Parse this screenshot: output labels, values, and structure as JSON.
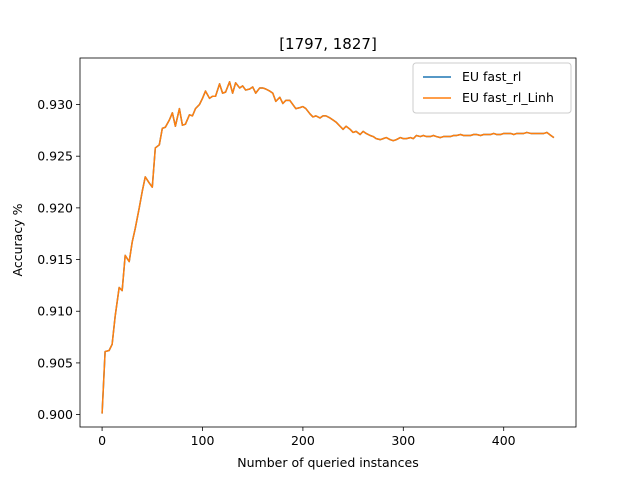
{
  "chart_data": {
    "type": "line",
    "title": "[1797, 1827]",
    "xlabel": "Number of queried instances",
    "ylabel": "Accuracy %",
    "xlim": [
      -22,
      472
    ],
    "ylim": [
      0.8988,
      0.9345
    ],
    "x_ticks": [
      0,
      100,
      200,
      300,
      400
    ],
    "y_ticks": [
      0.9,
      0.905,
      0.91,
      0.915,
      0.92,
      0.925,
      0.93
    ],
    "x_tick_labels": [
      "0",
      "100",
      "200",
      "300",
      "400"
    ],
    "y_tick_labels": [
      "0.900",
      "0.905",
      "0.910",
      "0.915",
      "0.920",
      "0.925",
      "0.930"
    ],
    "grid": false,
    "legend_position": "upper right",
    "x": [
      0,
      3,
      7,
      10,
      13,
      17,
      20,
      23,
      27,
      30,
      33,
      37,
      40,
      43,
      47,
      50,
      53,
      57,
      60,
      63,
      67,
      70,
      73,
      77,
      80,
      83,
      87,
      90,
      93,
      97,
      100,
      103,
      107,
      110,
      113,
      117,
      120,
      123,
      127,
      130,
      133,
      137,
      140,
      143,
      147,
      150,
      153,
      157,
      160,
      163,
      167,
      170,
      173,
      177,
      180,
      183,
      187,
      190,
      193,
      197,
      200,
      203,
      207,
      210,
      213,
      217,
      220,
      223,
      227,
      230,
      233,
      237,
      240,
      243,
      247,
      250,
      253,
      257,
      260,
      263,
      267,
      270,
      273,
      277,
      280,
      283,
      287,
      290,
      293,
      297,
      300,
      303,
      307,
      310,
      313,
      317,
      320,
      323,
      327,
      330,
      333,
      337,
      340,
      343,
      347,
      350,
      353,
      357,
      360,
      363,
      367,
      370,
      373,
      377,
      380,
      383,
      387,
      390,
      393,
      397,
      400,
      403,
      407,
      410,
      413,
      417,
      420,
      423,
      427,
      430,
      433,
      437,
      440,
      443,
      447,
      450
    ],
    "series": [
      {
        "name": "EU fast_rl",
        "color": "#1f77b4",
        "values": [
          0.9001,
          0.9061,
          0.9062,
          0.9068,
          0.9095,
          0.9123,
          0.912,
          0.9154,
          0.9148,
          0.9167,
          0.918,
          0.92,
          0.9216,
          0.923,
          0.9224,
          0.922,
          0.9258,
          0.9261,
          0.9277,
          0.9278,
          0.9285,
          0.9292,
          0.9279,
          0.9296,
          0.928,
          0.9281,
          0.929,
          0.9289,
          0.9296,
          0.93,
          0.9306,
          0.9313,
          0.9306,
          0.9308,
          0.9308,
          0.932,
          0.9311,
          0.9312,
          0.9322,
          0.9311,
          0.9321,
          0.9316,
          0.9318,
          0.9314,
          0.9315,
          0.9317,
          0.9311,
          0.9316,
          0.9316,
          0.9315,
          0.9313,
          0.9311,
          0.9303,
          0.9307,
          0.9301,
          0.9304,
          0.9304,
          0.93,
          0.9296,
          0.9297,
          0.9298,
          0.9296,
          0.9291,
          0.9288,
          0.9289,
          0.9287,
          0.9289,
          0.9289,
          0.9287,
          0.9285,
          0.9283,
          0.9279,
          0.9276,
          0.9279,
          0.9276,
          0.9273,
          0.9274,
          0.9271,
          0.9274,
          0.9272,
          0.927,
          0.9269,
          0.9267,
          0.9266,
          0.9267,
          0.9268,
          0.9266,
          0.9265,
          0.9266,
          0.9268,
          0.9267,
          0.9267,
          0.9268,
          0.9267,
          0.927,
          0.9269,
          0.927,
          0.9269,
          0.9269,
          0.927,
          0.9269,
          0.9268,
          0.9269,
          0.9269,
          0.9269,
          0.927,
          0.927,
          0.9271,
          0.927,
          0.927,
          0.927,
          0.9271,
          0.9271,
          0.927,
          0.9271,
          0.9271,
          0.9271,
          0.9272,
          0.9271,
          0.9271,
          0.9272,
          0.9272,
          0.9272,
          0.9271,
          0.9272,
          0.9272,
          0.9272,
          0.9273,
          0.9272,
          0.9272,
          0.9272,
          0.9272,
          0.9272,
          0.9273,
          0.927,
          0.9268
        ]
      },
      {
        "name": "EU fast_rl_Linh",
        "color": "#ff7f0e",
        "values": [
          0.9001,
          0.9061,
          0.9062,
          0.9068,
          0.9095,
          0.9123,
          0.912,
          0.9154,
          0.9148,
          0.9167,
          0.918,
          0.92,
          0.9216,
          0.923,
          0.9224,
          0.922,
          0.9258,
          0.9261,
          0.9277,
          0.9278,
          0.9285,
          0.9292,
          0.9279,
          0.9296,
          0.928,
          0.9281,
          0.929,
          0.9289,
          0.9296,
          0.93,
          0.9306,
          0.9313,
          0.9306,
          0.9308,
          0.9308,
          0.932,
          0.9311,
          0.9312,
          0.9322,
          0.9311,
          0.9321,
          0.9316,
          0.9318,
          0.9314,
          0.9315,
          0.9317,
          0.9311,
          0.9316,
          0.9316,
          0.9315,
          0.9313,
          0.9311,
          0.9303,
          0.9307,
          0.9301,
          0.9304,
          0.9304,
          0.93,
          0.9296,
          0.9297,
          0.9298,
          0.9296,
          0.9291,
          0.9288,
          0.9289,
          0.9287,
          0.9289,
          0.9289,
          0.9287,
          0.9285,
          0.9283,
          0.9279,
          0.9276,
          0.9279,
          0.9276,
          0.9273,
          0.9274,
          0.9271,
          0.9274,
          0.9272,
          0.927,
          0.9269,
          0.9267,
          0.9266,
          0.9267,
          0.9268,
          0.9266,
          0.9265,
          0.9266,
          0.9268,
          0.9267,
          0.9267,
          0.9268,
          0.9267,
          0.927,
          0.9269,
          0.927,
          0.9269,
          0.9269,
          0.927,
          0.9269,
          0.9268,
          0.9269,
          0.9269,
          0.9269,
          0.927,
          0.927,
          0.9271,
          0.927,
          0.927,
          0.927,
          0.9271,
          0.9271,
          0.927,
          0.9271,
          0.9271,
          0.9271,
          0.9272,
          0.9271,
          0.9271,
          0.9272,
          0.9272,
          0.9272,
          0.9271,
          0.9272,
          0.9272,
          0.9272,
          0.9273,
          0.9272,
          0.9272,
          0.9272,
          0.9272,
          0.9272,
          0.9273,
          0.927,
          0.9268
        ]
      }
    ]
  }
}
